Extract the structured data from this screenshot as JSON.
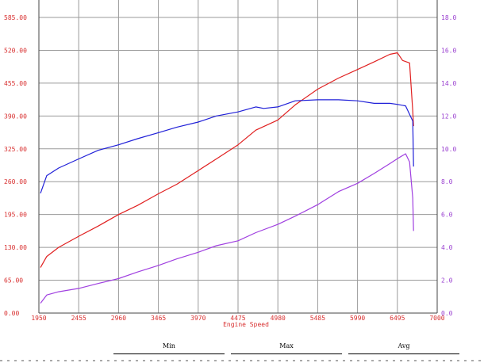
{
  "chart_data": {
    "type": "line",
    "title": "",
    "xlabel": "Engine Speed",
    "x_ticks": [
      "1950",
      "2455",
      "2960",
      "3465",
      "3970",
      "4475",
      "4980",
      "5485",
      "5990",
      "6495",
      "7000"
    ],
    "xlim": [
      1950,
      7000
    ],
    "y_left_ticks": [
      "0.00",
      "65.00",
      "130.00",
      "195.00",
      "260.00",
      "325.00",
      "390.00",
      "455.00",
      "520.00",
      "585.00"
    ],
    "ylim_left": [
      0,
      585
    ],
    "y_right_ticks": [
      "0.0",
      "2.0",
      "4.0",
      "6.0",
      "8.0",
      "10.0",
      "12.0",
      "14.0",
      "16.0",
      "18.0"
    ],
    "ylim_right": [
      0,
      18
    ],
    "grid": true,
    "colors": {
      "red": "#e02020",
      "blue": "#2020d8",
      "purple": "#a040e0"
    },
    "series": [
      {
        "color": "red",
        "axis": "left",
        "x": [
          1970,
          2050,
          2200,
          2455,
          2700,
          2960,
          3200,
          3465,
          3700,
          3970,
          4200,
          4475,
          4700,
          4980,
          5200,
          5485,
          5750,
          5990,
          6200,
          6400,
          6495,
          6560,
          6650,
          6690,
          6700
        ],
        "y": [
          90,
          112,
          130,
          152,
          172,
          195,
          213,
          236,
          255,
          282,
          305,
          333,
          362,
          382,
          412,
          443,
          465,
          482,
          497,
          512,
          515,
          500,
          495,
          400,
          370
        ]
      },
      {
        "color": "blue",
        "axis": "left",
        "x": [
          1970,
          2050,
          2200,
          2455,
          2700,
          2960,
          3200,
          3465,
          3700,
          3970,
          4200,
          4475,
          4700,
          4800,
          4980,
          5200,
          5485,
          5750,
          5990,
          6200,
          6400,
          6495,
          6600,
          6690,
          6700
        ],
        "y": [
          237,
          272,
          287,
          305,
          322,
          333,
          345,
          357,
          368,
          378,
          390,
          398,
          408,
          405,
          408,
          420,
          422,
          422,
          420,
          415,
          415,
          413,
          410,
          380,
          290
        ]
      },
      {
        "color": "purple",
        "axis": "right",
        "x": [
          1970,
          2050,
          2200,
          2455,
          2700,
          2960,
          3200,
          3465,
          3700,
          3970,
          4200,
          4475,
          4700,
          4980,
          5200,
          5485,
          5750,
          5990,
          6200,
          6400,
          6495,
          6600,
          6650,
          6690,
          6700
        ],
        "y": [
          0.6,
          1.1,
          1.3,
          1.5,
          1.8,
          2.1,
          2.5,
          2.9,
          3.3,
          3.7,
          4.1,
          4.4,
          4.9,
          5.4,
          5.9,
          6.6,
          7.4,
          7.9,
          8.5,
          9.1,
          9.4,
          9.7,
          9.2,
          7.0,
          5.0
        ]
      }
    ]
  },
  "stats": {
    "min_label": "Min",
    "max_label": "Max",
    "avg_label": "Avg"
  }
}
